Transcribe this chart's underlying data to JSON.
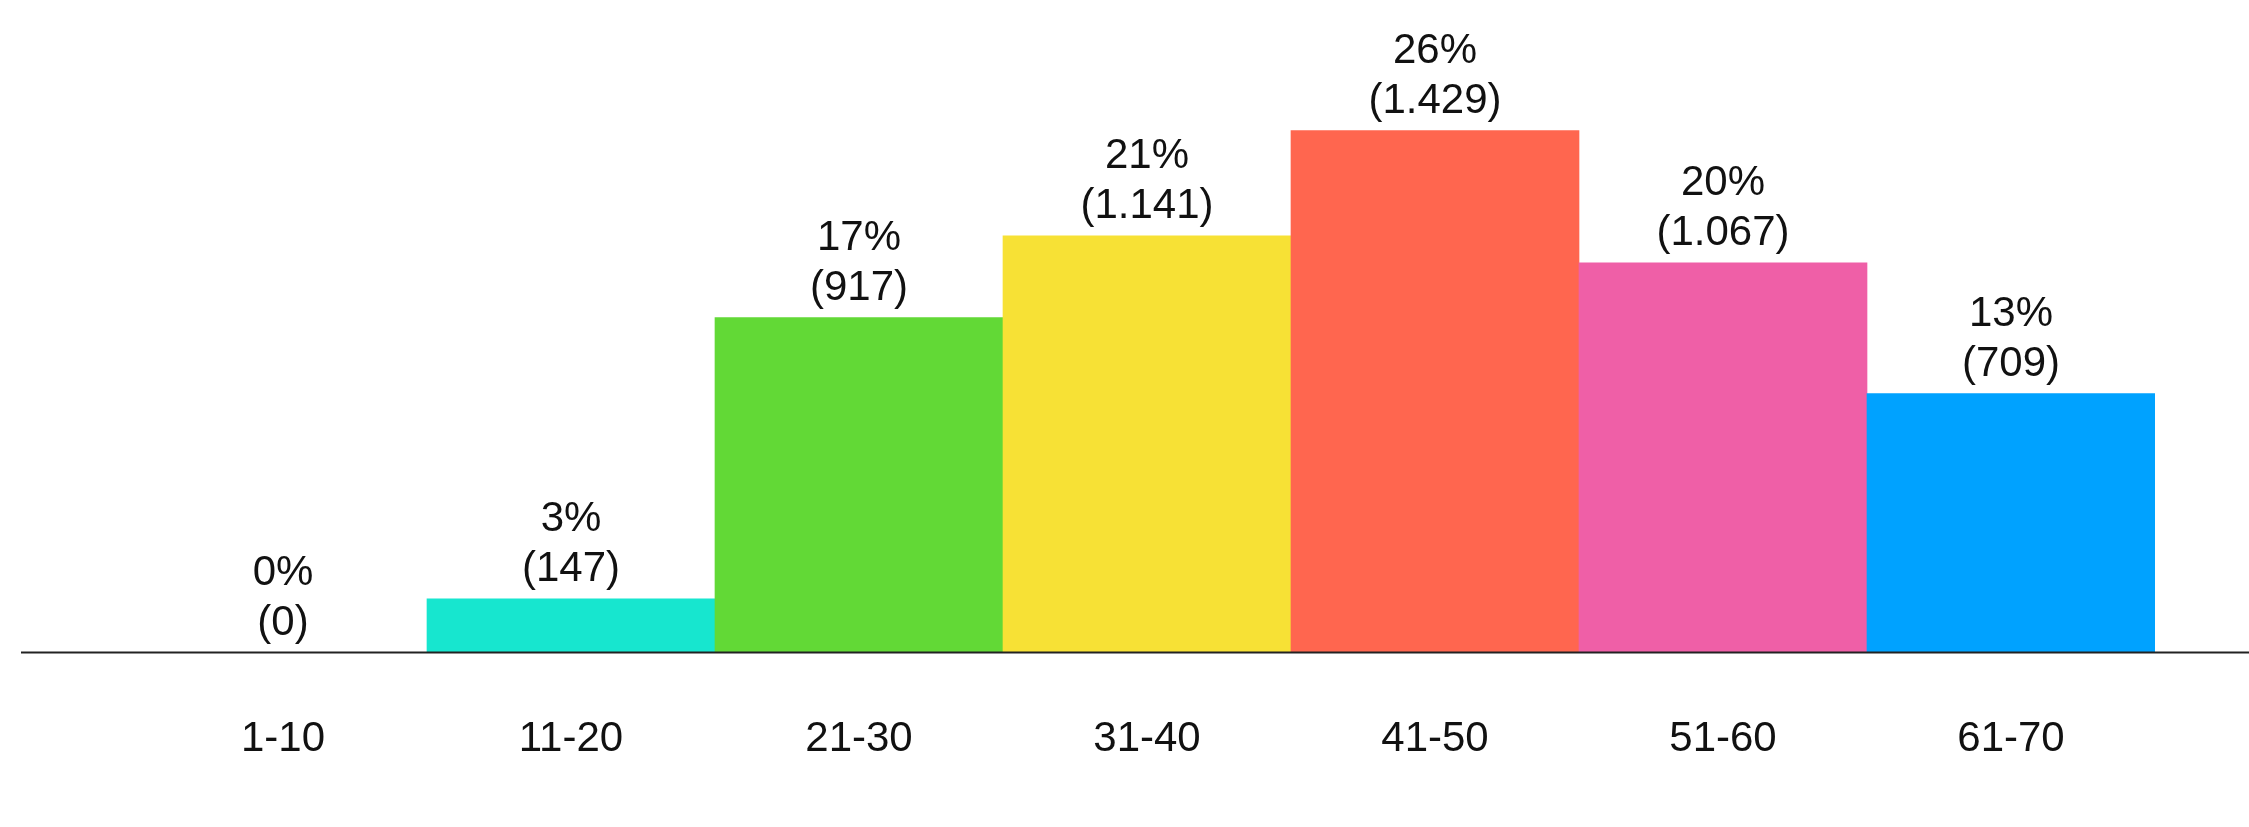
{
  "chart_data": {
    "type": "bar",
    "categories": [
      "1-10",
      "11-20",
      "21-30",
      "31-40",
      "41-50",
      "51-60",
      "61-70"
    ],
    "values": [
      0,
      147,
      917,
      1141,
      1429,
      1067,
      709
    ],
    "colors": [
      "#17e6cf",
      "#17e6cf",
      "#62d936",
      "#f7e135",
      "#ff664f",
      "#ef5fa7",
      "#00a2ff"
    ],
    "value_labels": [
      "0%\n(0)",
      "3%\n(147)",
      "17%\n(917)",
      "21%\n(1.141)",
      "26%\n(1.429)",
      "20%\n(1.067)",
      "13%\n(709)"
    ],
    "grid": false,
    "legend": false
  }
}
